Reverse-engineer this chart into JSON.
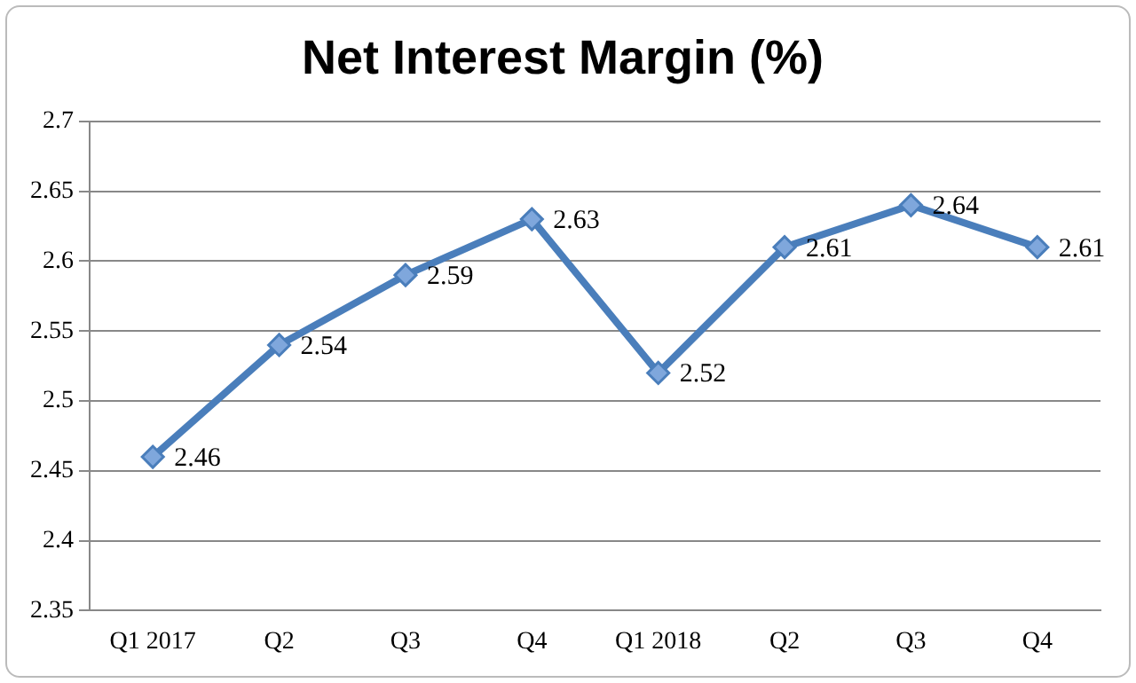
{
  "chart_data": {
    "type": "line",
    "title": "Net Interest Margin (%)",
    "categories": [
      "Q1 2017",
      "Q2",
      "Q3",
      "Q4",
      "Q1 2018",
      "Q2",
      "Q3",
      "Q4"
    ],
    "series": [
      {
        "color": "#4a7ebb",
        "values": [
          2.46,
          2.54,
          2.59,
          2.63,
          2.52,
          2.61,
          2.64,
          2.61
        ]
      }
    ],
    "ylim": [
      2.35,
      2.7
    ],
    "yticks": [
      2.35,
      2.4,
      2.45,
      2.5,
      2.55,
      2.6,
      2.65,
      2.7
    ],
    "grid": "y",
    "legend": false,
    "marker": "diamond",
    "line_style": "solid",
    "data_labels": true
  }
}
